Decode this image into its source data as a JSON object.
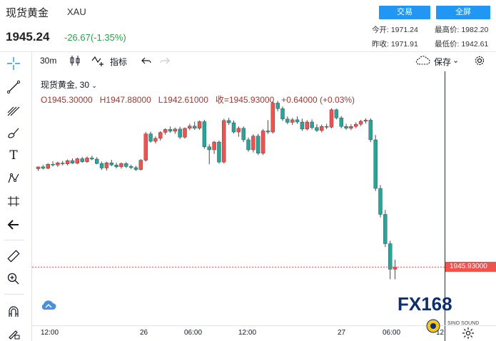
{
  "header": {
    "title": "现货黄金",
    "symbol": "XAU",
    "price": "1945.24",
    "change": "-26.67(-1.35%)",
    "trade_button": "交易",
    "fullscreen_button": "全屏",
    "stats": {
      "open_label": "今开:",
      "open_value": "1971.24",
      "high_label": "最高价:",
      "high_value": "1982.20",
      "prev_label": "昨收:",
      "prev_value": "1971.91",
      "low_label": "最低价:",
      "low_value": "1942.61"
    }
  },
  "toolbar": {
    "interval": "30m",
    "indicators_label": "指标",
    "save_label": "保存"
  },
  "legend": {
    "name": "现货黄金, 30",
    "ohlc": "O1945.30000   H1947.88000   L1942.61000   收=1945.93000   +0.64000 (+0.03%)"
  },
  "last_price_label": "1945.93000",
  "x_ticks": [
    {
      "label": "12:00"
    },
    {
      "label": "26"
    },
    {
      "label": "06:00"
    },
    {
      "label": "12:00"
    },
    {
      "label": "27"
    },
    {
      "label": "06:00"
    },
    {
      "label": "12"
    }
  ],
  "watermark": {
    "text": "FX168",
    "sub": "SINO SOUND"
  },
  "colors": {
    "up": "#ef5350",
    "down": "#26a69a",
    "accent": "#2196f3"
  },
  "chart_data": {
    "type": "candlestick",
    "ylim": [
      1940,
      1990
    ],
    "candles": [
      [
        1972.4,
        1973.0,
        1971.8,
        1972.9
      ],
      [
        1972.9,
        1973.4,
        1972.2,
        1972.5
      ],
      [
        1972.5,
        1973.9,
        1972.3,
        1973.6
      ],
      [
        1973.6,
        1974.4,
        1973.0,
        1973.4
      ],
      [
        1973.4,
        1974.3,
        1972.9,
        1974.0
      ],
      [
        1973.9,
        1974.5,
        1973.3,
        1973.7
      ],
      [
        1973.7,
        1974.9,
        1973.3,
        1974.6
      ],
      [
        1974.6,
        1975.2,
        1973.7,
        1973.9
      ],
      [
        1973.9,
        1975.4,
        1973.6,
        1975.1
      ],
      [
        1975.1,
        1975.6,
        1974.0,
        1974.3
      ],
      [
        1974.3,
        1975.7,
        1974.0,
        1975.3
      ],
      [
        1975.3,
        1975.9,
        1974.7,
        1975.0
      ],
      [
        1975.0,
        1975.5,
        1973.6,
        1973.8
      ],
      [
        1973.8,
        1974.3,
        1972.1,
        1972.6
      ],
      [
        1972.6,
        1974.3,
        1971.9,
        1974.0
      ],
      [
        1974.0,
        1974.8,
        1973.1,
        1973.4
      ],
      [
        1973.4,
        1974.0,
        1972.5,
        1972.9
      ],
      [
        1972.9,
        1974.1,
        1972.4,
        1973.8
      ],
      [
        1973.8,
        1974.2,
        1972.6,
        1973.0
      ],
      [
        1973.0,
        1973.5,
        1972.3,
        1972.7
      ],
      [
        1972.7,
        1973.2,
        1971.8,
        1972.2
      ],
      [
        1972.2,
        1975.0,
        1971.9,
        1974.7
      ],
      [
        1974.7,
        1982.3,
        1974.3,
        1981.8
      ],
      [
        1981.8,
        1982.4,
        1979.4,
        1979.8
      ],
      [
        1979.8,
        1981.1,
        1979.2,
        1980.6
      ],
      [
        1980.6,
        1982.5,
        1980.0,
        1982.2
      ],
      [
        1982.2,
        1983.3,
        1981.6,
        1983.0
      ],
      [
        1983.0,
        1983.8,
        1982.1,
        1982.5
      ],
      [
        1982.5,
        1983.5,
        1981.8,
        1983.1
      ],
      [
        1983.1,
        1983.7,
        1980.4,
        1980.9
      ],
      [
        1980.9,
        1983.5,
        1980.5,
        1983.3
      ],
      [
        1983.3,
        1984.5,
        1982.8,
        1983.9
      ],
      [
        1983.9,
        1985.1,
        1982.9,
        1983.3
      ],
      [
        1983.3,
        1985.4,
        1982.9,
        1985.1
      ],
      [
        1985.1,
        1985.6,
        1977.8,
        1978.3
      ],
      [
        1978.3,
        1979.0,
        1973.6,
        1977.5
      ],
      [
        1977.5,
        1979.9,
        1976.4,
        1979.6
      ],
      [
        1979.6,
        1980.0,
        1973.8,
        1974.2
      ],
      [
        1974.2,
        1985.9,
        1973.8,
        1985.4
      ],
      [
        1985.4,
        1986.1,
        1984.2,
        1984.8
      ],
      [
        1984.8,
        1985.4,
        1981.9,
        1982.3
      ],
      [
        1982.3,
        1983.8,
        1981.0,
        1983.3
      ],
      [
        1983.3,
        1983.8,
        1979.6,
        1980.2
      ],
      [
        1980.2,
        1980.8,
        1977.0,
        1977.5
      ],
      [
        1977.5,
        1981.7,
        1976.8,
        1981.2
      ],
      [
        1981.2,
        1981.8,
        1976.1,
        1976.6
      ],
      [
        1976.6,
        1983.1,
        1976.1,
        1982.6
      ],
      [
        1982.6,
        1985.5,
        1981.8,
        1982.3
      ],
      [
        1982.3,
        1990.6,
        1981.9,
        1990.1
      ],
      [
        1990.1,
        1990.7,
        1987.9,
        1988.6
      ],
      [
        1988.6,
        1989.2,
        1985.3,
        1985.8
      ],
      [
        1985.8,
        1986.5,
        1984.4,
        1984.9
      ],
      [
        1984.9,
        1986.1,
        1984.2,
        1985.6
      ],
      [
        1985.6,
        1986.5,
        1984.5,
        1985.0
      ],
      [
        1985.0,
        1985.9,
        1982.6,
        1983.1
      ],
      [
        1983.1,
        1985.5,
        1982.7,
        1985.0
      ],
      [
        1985.0,
        1985.7,
        1983.0,
        1983.5
      ],
      [
        1983.5,
        1984.4,
        1982.3,
        1982.7
      ],
      [
        1982.7,
        1984.3,
        1982.2,
        1983.8
      ],
      [
        1983.8,
        1984.5,
        1983.1,
        1983.6
      ],
      [
        1983.6,
        1988.7,
        1983.3,
        1988.3
      ],
      [
        1988.3,
        1988.6,
        1985.7,
        1986.1
      ],
      [
        1986.1,
        1986.6,
        1983.3,
        1983.8
      ],
      [
        1983.8,
        1984.5,
        1982.9,
        1983.3
      ],
      [
        1983.3,
        1984.4,
        1982.8,
        1983.8
      ],
      [
        1983.8,
        1984.9,
        1983.3,
        1984.4
      ],
      [
        1984.4,
        1985.6,
        1983.9,
        1985.2
      ],
      [
        1985.2,
        1986.0,
        1984.6,
        1985.5
      ],
      [
        1985.5,
        1986.0,
        1979.6,
        1980.2
      ],
      [
        1980.2,
        1981.5,
        1966.4,
        1967.1
      ],
      [
        1967.1,
        1968.0,
        1959.3,
        1960.1
      ],
      [
        1960.1,
        1961.3,
        1951.3,
        1952.2
      ],
      [
        1952.2,
        1953.0,
        1942.6,
        1945.3
      ],
      [
        1945.3,
        1947.9,
        1942.6,
        1945.9
      ]
    ]
  }
}
